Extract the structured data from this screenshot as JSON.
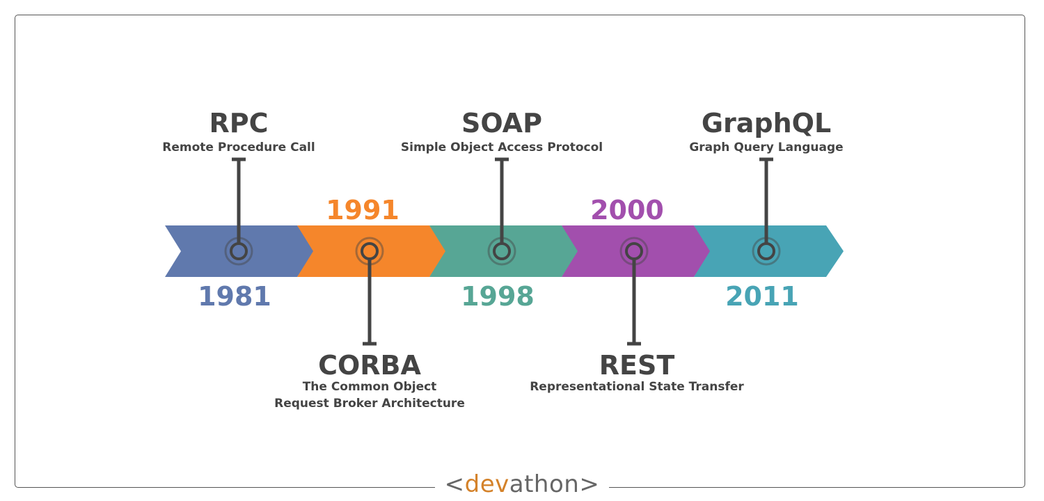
{
  "diagram": {
    "type": "timeline",
    "colors": {
      "text": "#444444",
      "stem": "#444444",
      "frame": "#555555"
    },
    "milestones": [
      {
        "year": "1981",
        "abbr": "RPC",
        "full": [
          "Remote Procedure Call"
        ],
        "label_side": "above",
        "year_side": "below",
        "color": "#6079ad"
      },
      {
        "year": "1991",
        "abbr": "CORBA",
        "full": [
          "The Common Object",
          "Request Broker Architecture"
        ],
        "label_side": "below",
        "year_side": "above",
        "color": "#f5862b"
      },
      {
        "year": "1998",
        "abbr": "SOAP",
        "full": [
          "Simple Object Access Protocol"
        ],
        "label_side": "above",
        "year_side": "below",
        "color": "#57a695"
      },
      {
        "year": "2000",
        "abbr": "REST",
        "full": [
          "Representational State Transfer"
        ],
        "label_side": "below",
        "year_side": "above",
        "color": "#a24fad"
      },
      {
        "year": "2011",
        "abbr": "GraphQL",
        "full": [
          "Graph Query Language"
        ],
        "label_side": "above",
        "year_side": "below",
        "color": "#48a4b5"
      }
    ]
  },
  "footer": {
    "brand_left": "<",
    "brand_accent": "dev",
    "brand_rest": "athon",
    "brand_right": ">"
  }
}
